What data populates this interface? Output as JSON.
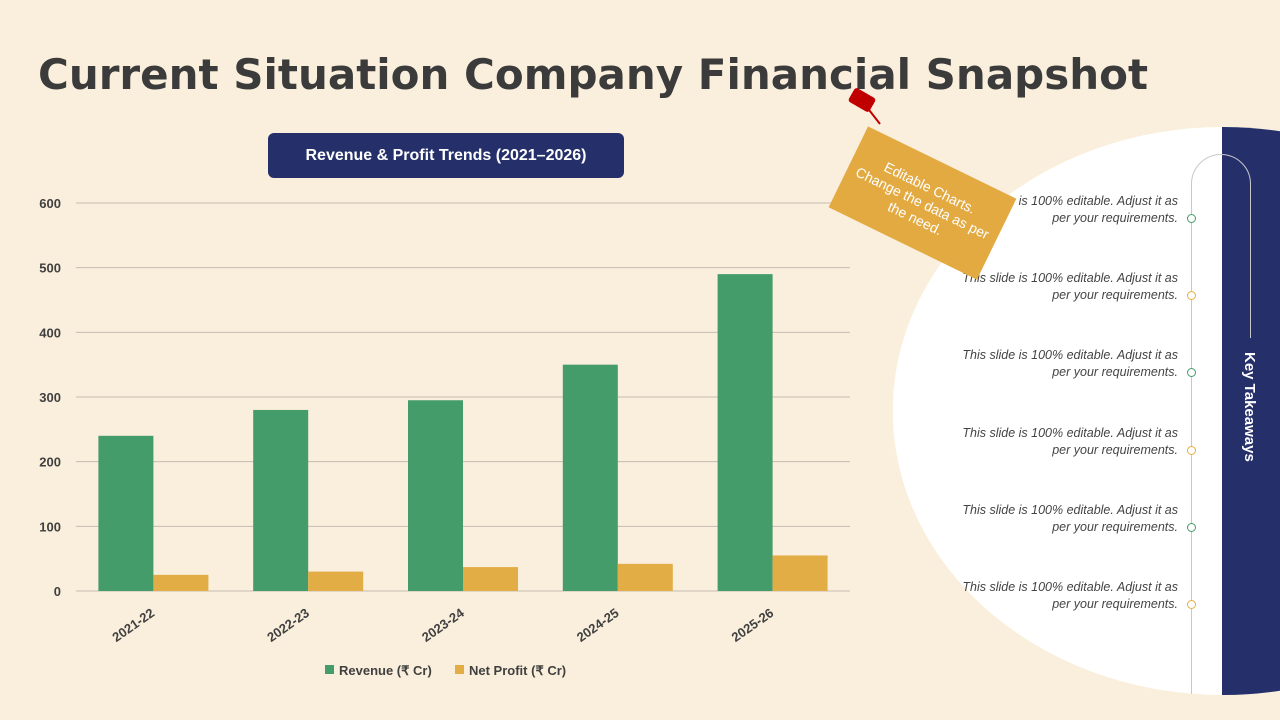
{
  "title": "Current Situation Company Financial Snapshot",
  "chart_data": {
    "type": "bar",
    "title": "Revenue & Profit Trends (2021–2026)",
    "categories": [
      "2021-22",
      "2022-23",
      "2023-24",
      "2024-25",
      "2025-26"
    ],
    "series": [
      {
        "name": "Revenue (₹ Cr)",
        "values": [
          240,
          280,
          295,
          350,
          490
        ],
        "color": "#439C69"
      },
      {
        "name": "Net Profit (₹ Cr)",
        "values": [
          25,
          30,
          37,
          42,
          55
        ],
        "color": "#E3AD45"
      }
    ],
    "ylim": [
      0,
      600
    ],
    "yticks": [
      0,
      100,
      200,
      300,
      400,
      500,
      600
    ],
    "grid": true,
    "legend": "bottom"
  },
  "note": "Editable Charts. Change the data as per the need.",
  "sidebar": {
    "label": "Key Takeaways",
    "items": [
      {
        "text": "This slide is 100% editable. Adjust it as per your requirements.",
        "color": "#439C69"
      },
      {
        "text": "This slide is 100% editable. Adjust it as per your requirements.",
        "color": "#E3AD45"
      },
      {
        "text": "This slide is 100% editable. Adjust it as per your requirements.",
        "color": "#439C69"
      },
      {
        "text": "This slide is 100% editable. Adjust it as per your requirements.",
        "color": "#E3AD45"
      },
      {
        "text": "This slide is 100% editable. Adjust it as per your requirements.",
        "color": "#439C69"
      },
      {
        "text": "This slide is 100% editable. Adjust it as per your requirements.",
        "color": "#E3AD45"
      }
    ]
  }
}
